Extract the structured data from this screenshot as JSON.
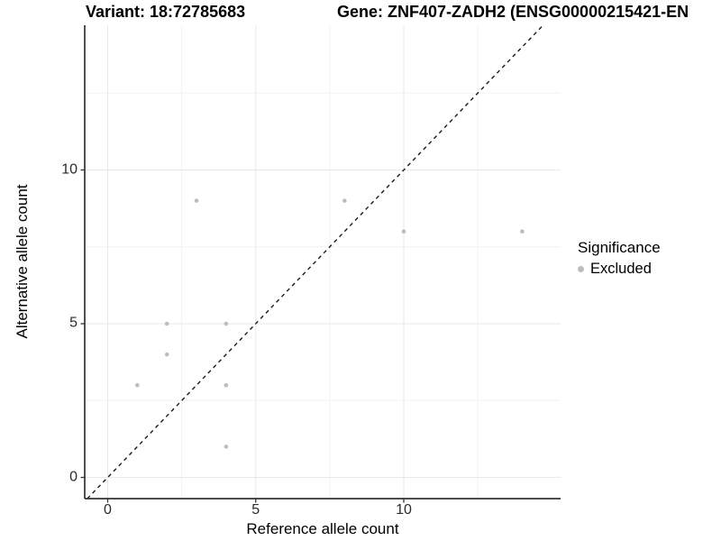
{
  "chart_data": {
    "type": "scatter",
    "title_left": "Variant: 18:72785683",
    "title_right": "Gene: ZNF407-ZADH2 (ENSG00000215421-EN",
    "xlabel": "Reference allele count",
    "ylabel": "Alternative allele count",
    "xlim": [
      -0.78,
      15.3
    ],
    "ylim": [
      -0.69,
      14.72
    ],
    "x_major_ticks": [
      0,
      5,
      10
    ],
    "y_major_ticks": [
      0,
      5,
      10
    ],
    "x_minor_gridlines": [
      2.5,
      7.5,
      12.5
    ],
    "y_minor_gridlines": [
      2.5,
      7.5,
      12.5
    ],
    "grid": true,
    "identity_line": {
      "slope": 1,
      "intercept": 0,
      "style": "dashed",
      "color": "#1a1a1a"
    },
    "series": [
      {
        "name": "Excluded",
        "color": "#bdbdbd",
        "points": [
          [
            3,
            9
          ],
          [
            8,
            9
          ],
          [
            10,
            8
          ],
          [
            14,
            8
          ],
          [
            2,
            5
          ],
          [
            4,
            5
          ],
          [
            2,
            4
          ],
          [
            1,
            3
          ],
          [
            4,
            3
          ],
          [
            4,
            1
          ]
        ]
      }
    ],
    "legend": {
      "title": "Significance",
      "position": "right",
      "items": [
        {
          "label": "Excluded",
          "marker": "circle",
          "marker_color": "#bdbdbd"
        }
      ]
    },
    "colors": {
      "background": "#ffffff",
      "axis_line": "#333333",
      "tick_mark": "#333333",
      "grid_major": "#e8e8e8",
      "grid_minor": "#f3f3f3",
      "point": "#bdbdbd"
    }
  }
}
